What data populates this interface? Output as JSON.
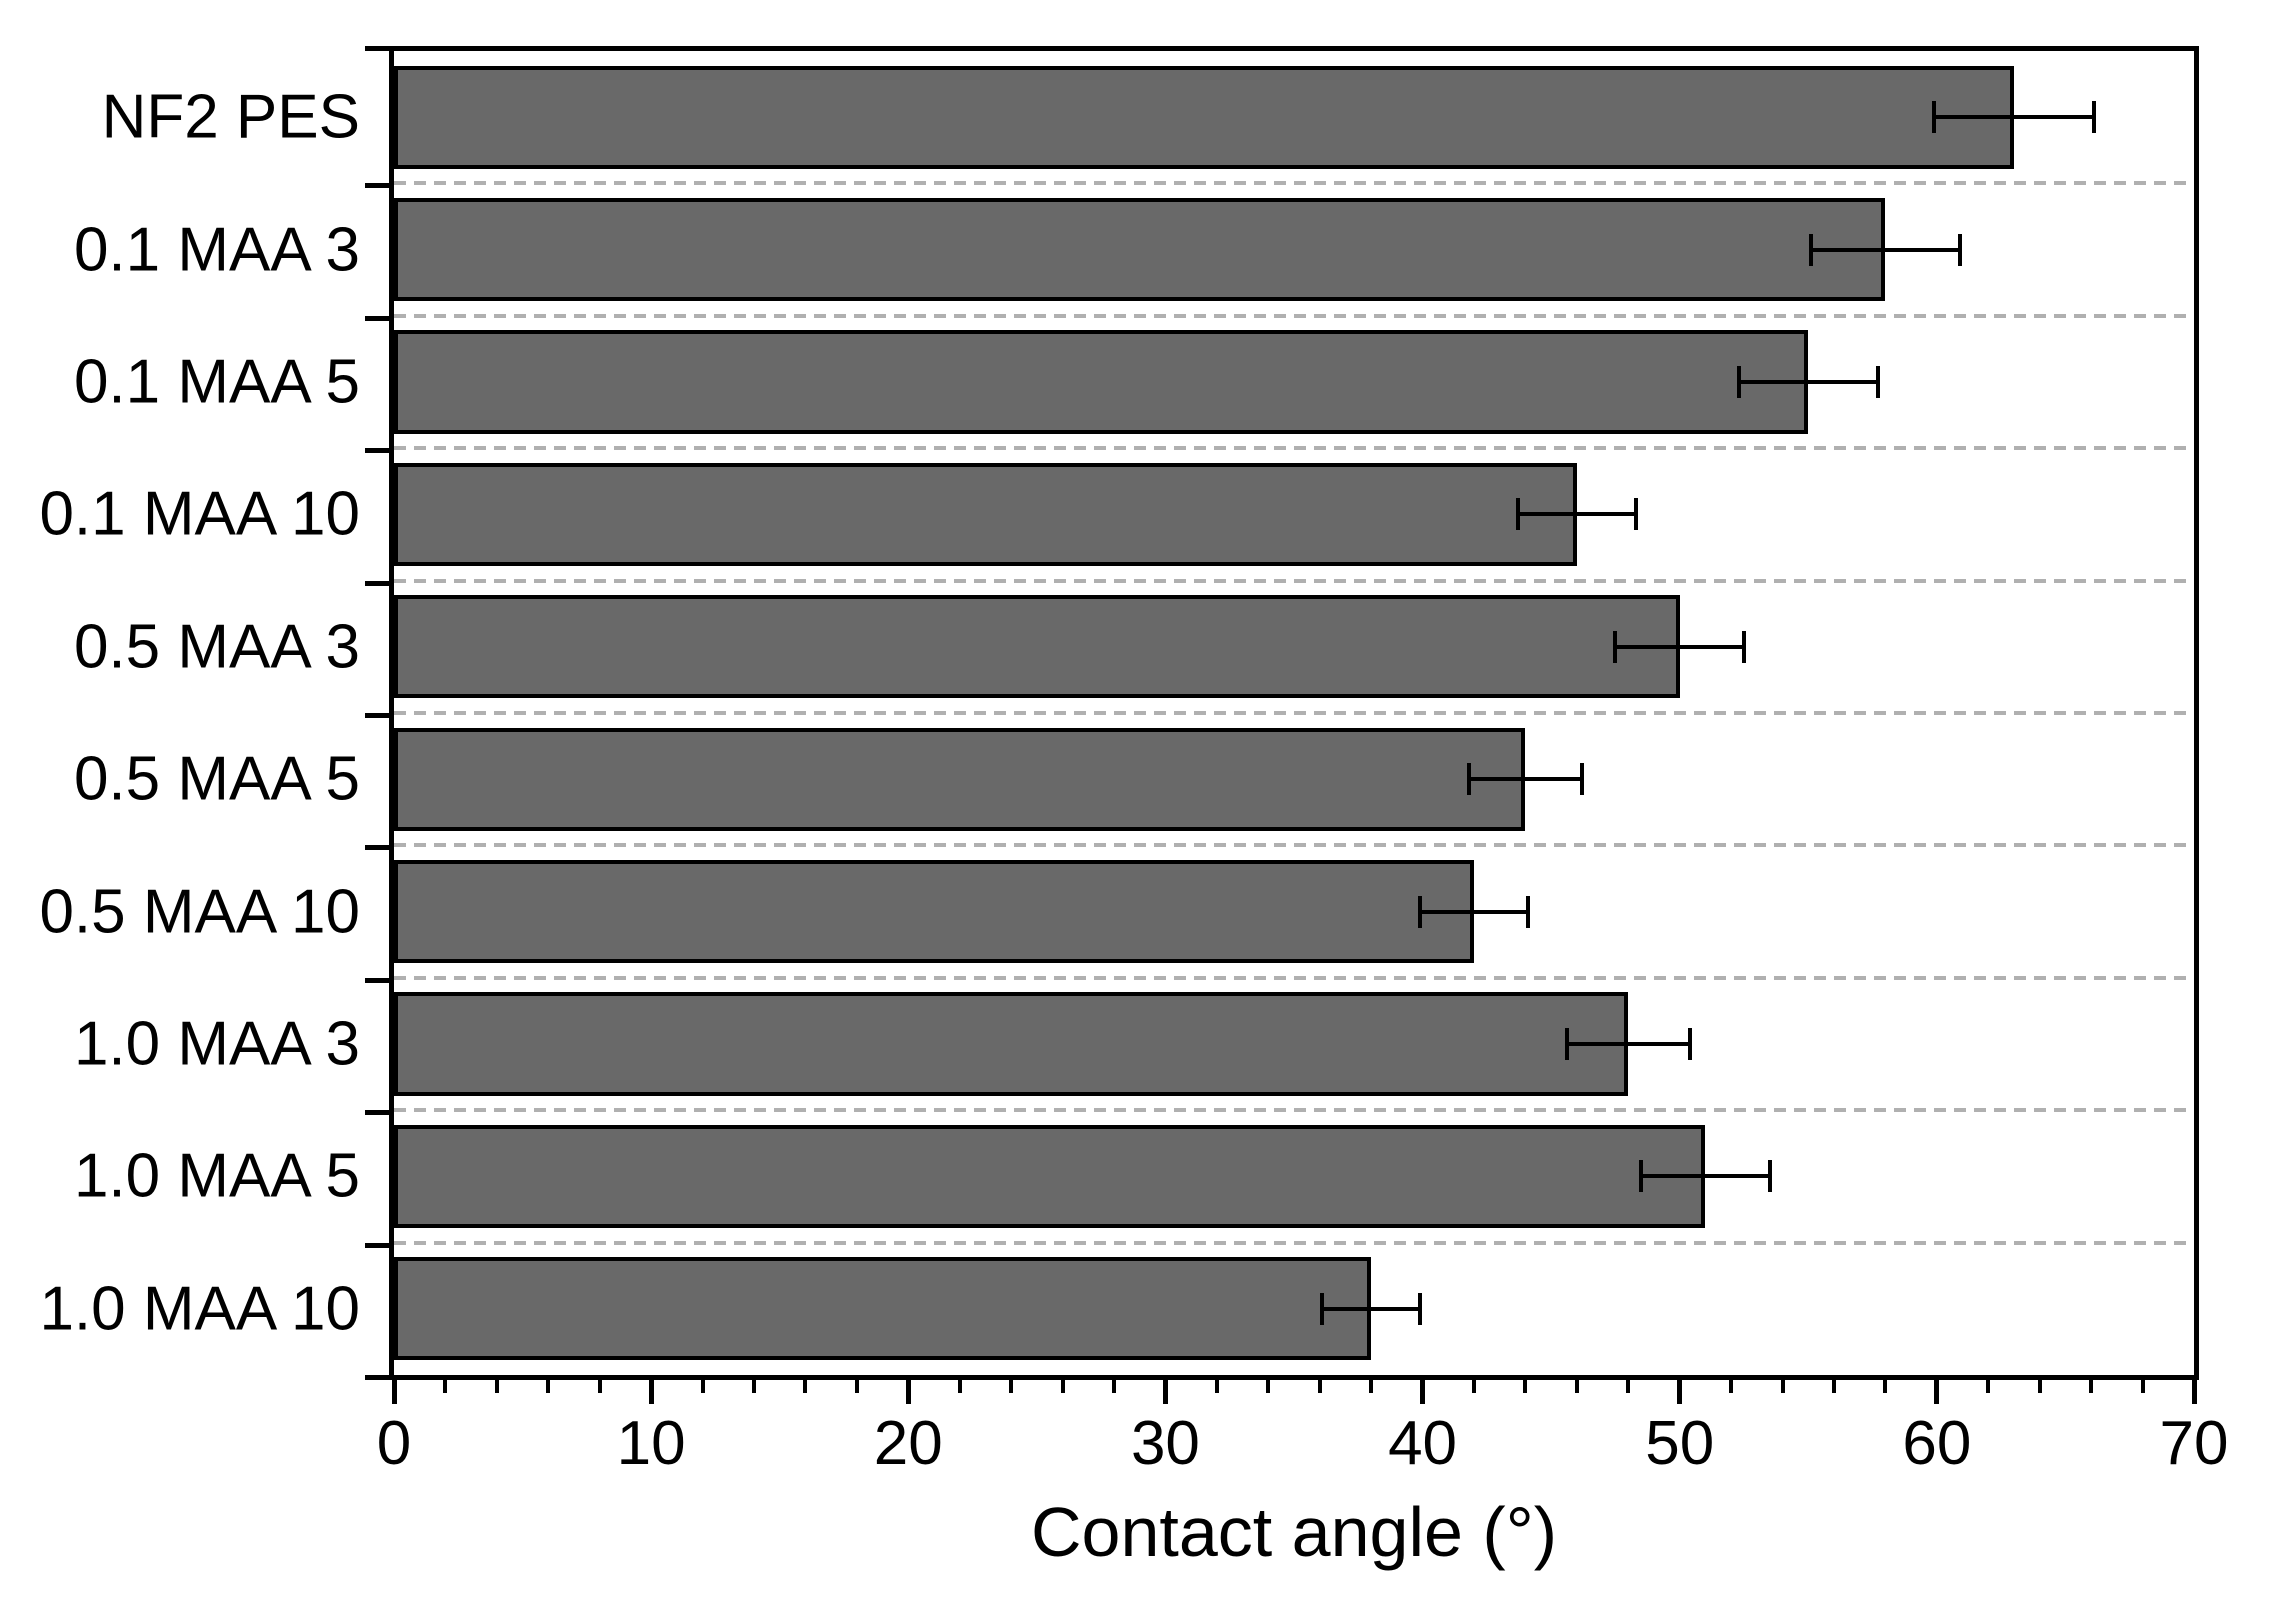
{
  "chart_data": {
    "type": "bar",
    "orientation": "horizontal",
    "title": "",
    "xlabel": "Contact angle (°)",
    "ylabel": "",
    "xlim": [
      0,
      70
    ],
    "x_major_ticks": [
      0,
      10,
      20,
      30,
      40,
      50,
      60,
      70
    ],
    "x_minor_tick_step": 2,
    "grid": "dashed horizontal lines between category bands",
    "legend": "none",
    "categories": [
      "NF2 PES",
      "0.1 MAA 3",
      "0.1 MAA 5",
      "0.1 MAA 10",
      "0.5 MAA 3",
      "0.5 MAA 5",
      "0.5 MAA 10",
      "1.0 MAA 3",
      "1.0 MAA 5",
      "1.0 MAA 10"
    ],
    "series": [
      {
        "name": "Contact angle",
        "values": [
          63,
          58,
          55,
          46,
          50,
          44,
          42,
          48,
          51,
          38
        ],
        "errors": [
          3.1,
          2.9,
          2.7,
          2.3,
          2.5,
          2.2,
          2.1,
          2.4,
          2.5,
          1.9
        ]
      }
    ],
    "colors": {
      "bar_fill": "#696969",
      "bar_border": "#000000",
      "grid_line": "#b0b0b0",
      "axis": "#000000",
      "background": "#ffffff"
    }
  }
}
